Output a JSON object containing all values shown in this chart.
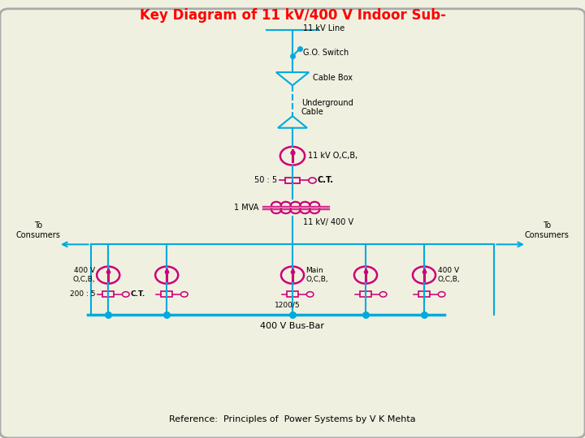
{
  "title": "Key Diagram of 11 kV/400 V Indoor Sub-",
  "title_color": "#FF0000",
  "bg_color": "#F0F0E0",
  "line_color": "#00AADD",
  "component_color": "#CC0077",
  "text_color": "#000000",
  "reference": "Reference:  Principles of  Power Systems by V K Mehta",
  "labels": {
    "11kv_line": "11 kV Line",
    "go_switch": "G.O. Switch",
    "cable_box": "Cable Box",
    "underground": "Underground\nCable",
    "11kv_ocb": "11 kV O,C,B,",
    "ct_ratio1": "50 : 5",
    "ct1": "C.T.",
    "transformer": "1 MVA",
    "transformer_ratio": "11 kV/ 400 V",
    "main_ocb": "Main\nO,C,B,",
    "bus_bar": "400 V Bus-Bar",
    "to_consumers_left": "To\nConsumers",
    "to_consumers_right": "To\nConsumers",
    "400v_ocb_left": "400 V\nO,C,B,",
    "400v_ocb_right": "400 V\nO,C,B,",
    "ct_ratio2": "200 : 5",
    "ct2": "C.T.",
    "ct_ratio3": "1200/5"
  }
}
